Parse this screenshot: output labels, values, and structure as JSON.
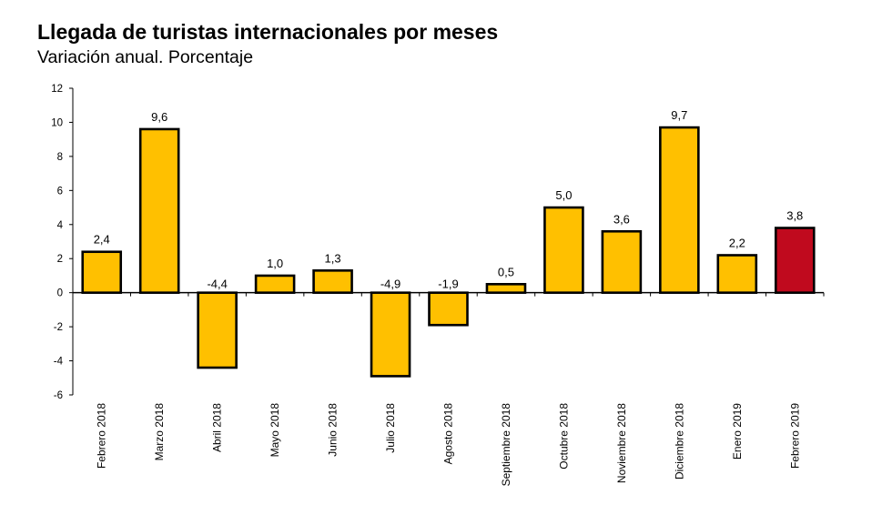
{
  "header": {
    "title": "Llegada de turistas internacionales por meses",
    "subtitle": "Variación anual. Porcentaje"
  },
  "chart_data": {
    "type": "bar",
    "title": "Llegada de turistas internacionales por meses",
    "subtitle": "Variación anual. Porcentaje",
    "categories": [
      "Febrero 2018",
      "Marzo 2018",
      "Abril 2018",
      "Mayo 2018",
      "Junio 2018",
      "Julio 2018",
      "Agosto 2018",
      "Septiembre 2018",
      "Octubre 2018",
      "Noviembre 2018",
      "Diciembre 2018",
      "Enero 2019",
      "Febrero 2019"
    ],
    "values": [
      2.4,
      9.6,
      -4.4,
      1.0,
      1.3,
      -4.9,
      -1.9,
      0.5,
      5.0,
      3.6,
      9.7,
      2.2,
      3.8
    ],
    "value_labels": [
      "2,4",
      "9,6",
      "-4,4",
      "1,0",
      "1,3",
      "-4,9",
      "-1,9",
      "0,5",
      "5,0",
      "3,6",
      "9,7",
      "2,2",
      "3,8"
    ],
    "ylim": [
      -6,
      12
    ],
    "yticks": [
      12,
      10,
      8,
      6,
      4,
      2,
      0,
      -2,
      -4,
      -6
    ],
    "xlabel": "",
    "ylabel": "",
    "grid": false,
    "legend": "none",
    "colors": {
      "bar": "#FFC000",
      "highlight": "#C00A1E",
      "outline": "#000000"
    },
    "highlight_index": 12
  }
}
